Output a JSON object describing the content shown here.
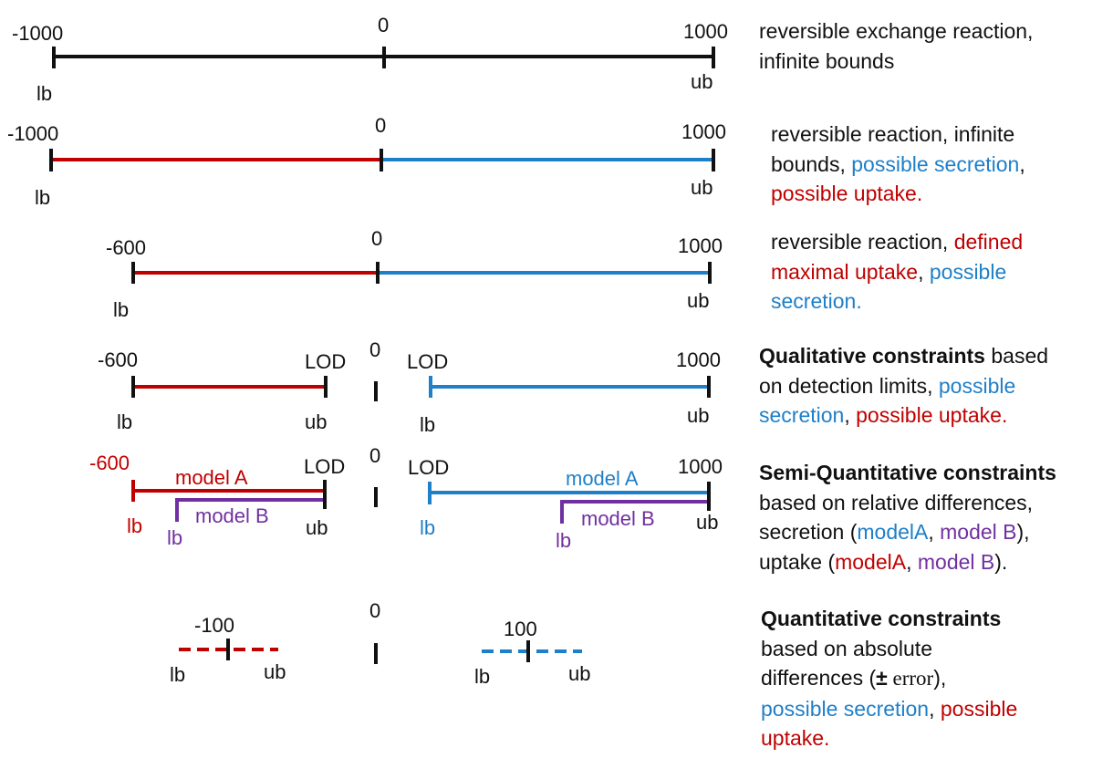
{
  "colors": {
    "black": "#111111",
    "red": "#c00000",
    "blue": "#1f7fc8",
    "purple": "#7030a0"
  },
  "rows": [
    {
      "id": "row1",
      "labels": {
        "min": "-1000",
        "zero": "0",
        "max": "1000",
        "lb": "lb",
        "ub": "ub"
      },
      "description": {
        "line1": "reversible exchange reaction,",
        "line2": "infinite bounds"
      }
    },
    {
      "id": "row2",
      "labels": {
        "min": "-1000",
        "zero": "0",
        "max": "1000",
        "lb": "lb",
        "ub": "ub"
      },
      "description": {
        "p1": "reversible reaction, infinite",
        "p2": "bounds, ",
        "secretion": "possible secretion",
        "p3": ",",
        "uptake": "possible uptake."
      }
    },
    {
      "id": "row3",
      "labels": {
        "min": "-600",
        "zero": "0",
        "max": "1000",
        "lb": "lb",
        "ub": "ub"
      },
      "description": {
        "p1": "reversible reaction, ",
        "uptake_a": "defined",
        "uptake_b": "maximal uptake",
        "p2": ", ",
        "secretion_a": "possible",
        "secretion_b": "secretion."
      }
    },
    {
      "id": "row4",
      "labels": {
        "min": "-600",
        "lod_left": "LOD",
        "zero": "0",
        "lod_right": "LOD",
        "max": "1000",
        "lb_left": "lb",
        "ub_left": "ub",
        "lb_right": "lb",
        "ub_right": "ub"
      },
      "description": {
        "bold": "Qualitative constraints",
        "p1": " based",
        "p2": "on detection limits, ",
        "secretion_a": "possible",
        "secretion_b": "secretion",
        "p3": ", ",
        "uptake": "possible uptake."
      }
    },
    {
      "id": "row5",
      "labels": {
        "min": "-600",
        "lod_left": "LOD",
        "zero": "0",
        "lod_right": "LOD",
        "max": "1000",
        "model_a": "model A",
        "model_b": "model B",
        "lb": "lb",
        "ub": "ub"
      },
      "description": {
        "bold": "Semi-Quantitative constraints",
        "p1": "based on relative differences,",
        "p2": "secretion (",
        "model_a": "modelA",
        "sep": ", ",
        "model_b": "model B",
        "p3": "),",
        "p4": "uptake (",
        "p5": ")."
      }
    },
    {
      "id": "row6",
      "labels": {
        "neg": "-100",
        "zero": "0",
        "pos": "100",
        "lb": "lb",
        "ub": "ub"
      },
      "description": {
        "bold": "Quantitative constraints",
        "p1": "based on absolute",
        "p2": "differences (",
        "pm": "±",
        "err": " error",
        "p3": "),",
        "secretion": "possible secretion",
        "p4": ", ",
        "uptake_a": "possible",
        "uptake_b": "uptake."
      }
    }
  ]
}
